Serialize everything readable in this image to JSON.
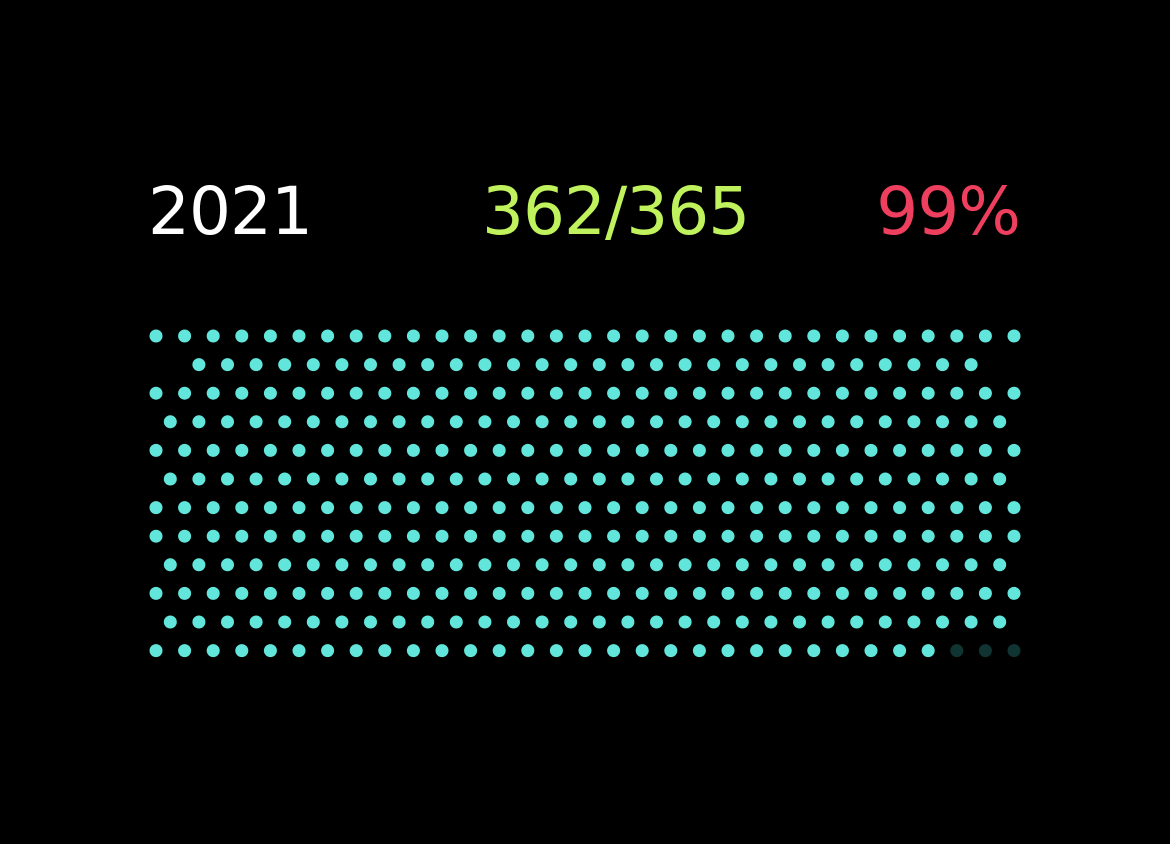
{
  "header": {
    "year": "2021",
    "count": "362/365",
    "percent": "99%"
  },
  "calendar": {
    "total_days": 365,
    "completed_days": 362,
    "month_days": [
      31,
      28,
      31,
      30,
      31,
      30,
      31,
      31,
      30,
      31,
      30,
      31
    ]
  },
  "colors": {
    "background": "#000000",
    "year_text": "#ffffff",
    "count_text": "#bff25c",
    "percent_text": "#ef3f5e",
    "dot_completed": "#62e6dc",
    "dot_remaining": "#0f3432"
  }
}
